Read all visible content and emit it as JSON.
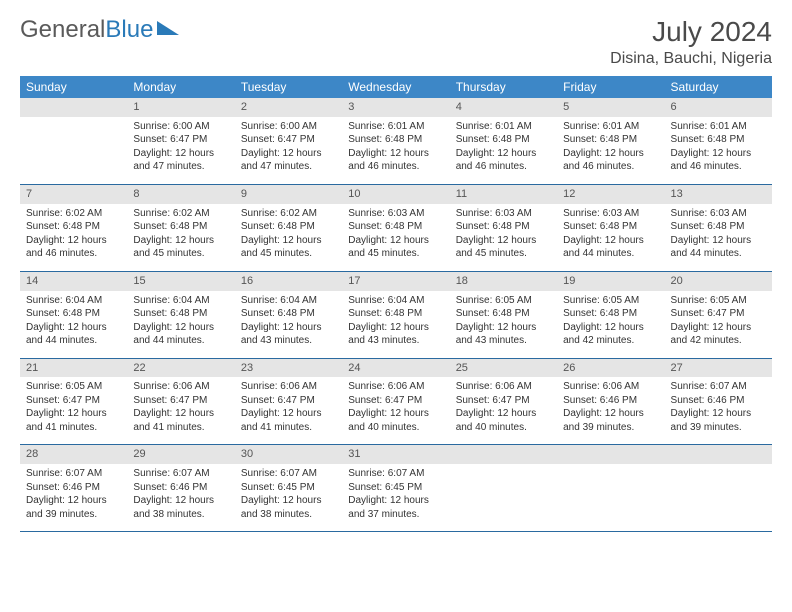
{
  "logo": {
    "part1": "General",
    "part2": "Blue"
  },
  "header": {
    "title": "July 2024",
    "location": "Disina, Bauchi, Nigeria"
  },
  "colors": {
    "header_bg": "#3d87c7",
    "header_text": "#ffffff",
    "daynum_bg": "#e5e5e5",
    "row_border": "#2a6aa0",
    "logo_accent": "#2a7ab8",
    "text": "#333333"
  },
  "columns": [
    "Sunday",
    "Monday",
    "Tuesday",
    "Wednesday",
    "Thursday",
    "Friday",
    "Saturday"
  ],
  "weeks": [
    [
      null,
      {
        "n": "1",
        "sr": "Sunrise: 6:00 AM",
        "ss": "Sunset: 6:47 PM",
        "d1": "Daylight: 12 hours",
        "d2": "and 47 minutes."
      },
      {
        "n": "2",
        "sr": "Sunrise: 6:00 AM",
        "ss": "Sunset: 6:47 PM",
        "d1": "Daylight: 12 hours",
        "d2": "and 47 minutes."
      },
      {
        "n": "3",
        "sr": "Sunrise: 6:01 AM",
        "ss": "Sunset: 6:48 PM",
        "d1": "Daylight: 12 hours",
        "d2": "and 46 minutes."
      },
      {
        "n": "4",
        "sr": "Sunrise: 6:01 AM",
        "ss": "Sunset: 6:48 PM",
        "d1": "Daylight: 12 hours",
        "d2": "and 46 minutes."
      },
      {
        "n": "5",
        "sr": "Sunrise: 6:01 AM",
        "ss": "Sunset: 6:48 PM",
        "d1": "Daylight: 12 hours",
        "d2": "and 46 minutes."
      },
      {
        "n": "6",
        "sr": "Sunrise: 6:01 AM",
        "ss": "Sunset: 6:48 PM",
        "d1": "Daylight: 12 hours",
        "d2": "and 46 minutes."
      }
    ],
    [
      {
        "n": "7",
        "sr": "Sunrise: 6:02 AM",
        "ss": "Sunset: 6:48 PM",
        "d1": "Daylight: 12 hours",
        "d2": "and 46 minutes."
      },
      {
        "n": "8",
        "sr": "Sunrise: 6:02 AM",
        "ss": "Sunset: 6:48 PM",
        "d1": "Daylight: 12 hours",
        "d2": "and 45 minutes."
      },
      {
        "n": "9",
        "sr": "Sunrise: 6:02 AM",
        "ss": "Sunset: 6:48 PM",
        "d1": "Daylight: 12 hours",
        "d2": "and 45 minutes."
      },
      {
        "n": "10",
        "sr": "Sunrise: 6:03 AM",
        "ss": "Sunset: 6:48 PM",
        "d1": "Daylight: 12 hours",
        "d2": "and 45 minutes."
      },
      {
        "n": "11",
        "sr": "Sunrise: 6:03 AM",
        "ss": "Sunset: 6:48 PM",
        "d1": "Daylight: 12 hours",
        "d2": "and 45 minutes."
      },
      {
        "n": "12",
        "sr": "Sunrise: 6:03 AM",
        "ss": "Sunset: 6:48 PM",
        "d1": "Daylight: 12 hours",
        "d2": "and 44 minutes."
      },
      {
        "n": "13",
        "sr": "Sunrise: 6:03 AM",
        "ss": "Sunset: 6:48 PM",
        "d1": "Daylight: 12 hours",
        "d2": "and 44 minutes."
      }
    ],
    [
      {
        "n": "14",
        "sr": "Sunrise: 6:04 AM",
        "ss": "Sunset: 6:48 PM",
        "d1": "Daylight: 12 hours",
        "d2": "and 44 minutes."
      },
      {
        "n": "15",
        "sr": "Sunrise: 6:04 AM",
        "ss": "Sunset: 6:48 PM",
        "d1": "Daylight: 12 hours",
        "d2": "and 44 minutes."
      },
      {
        "n": "16",
        "sr": "Sunrise: 6:04 AM",
        "ss": "Sunset: 6:48 PM",
        "d1": "Daylight: 12 hours",
        "d2": "and 43 minutes."
      },
      {
        "n": "17",
        "sr": "Sunrise: 6:04 AM",
        "ss": "Sunset: 6:48 PM",
        "d1": "Daylight: 12 hours",
        "d2": "and 43 minutes."
      },
      {
        "n": "18",
        "sr": "Sunrise: 6:05 AM",
        "ss": "Sunset: 6:48 PM",
        "d1": "Daylight: 12 hours",
        "d2": "and 43 minutes."
      },
      {
        "n": "19",
        "sr": "Sunrise: 6:05 AM",
        "ss": "Sunset: 6:48 PM",
        "d1": "Daylight: 12 hours",
        "d2": "and 42 minutes."
      },
      {
        "n": "20",
        "sr": "Sunrise: 6:05 AM",
        "ss": "Sunset: 6:47 PM",
        "d1": "Daylight: 12 hours",
        "d2": "and 42 minutes."
      }
    ],
    [
      {
        "n": "21",
        "sr": "Sunrise: 6:05 AM",
        "ss": "Sunset: 6:47 PM",
        "d1": "Daylight: 12 hours",
        "d2": "and 41 minutes."
      },
      {
        "n": "22",
        "sr": "Sunrise: 6:06 AM",
        "ss": "Sunset: 6:47 PM",
        "d1": "Daylight: 12 hours",
        "d2": "and 41 minutes."
      },
      {
        "n": "23",
        "sr": "Sunrise: 6:06 AM",
        "ss": "Sunset: 6:47 PM",
        "d1": "Daylight: 12 hours",
        "d2": "and 41 minutes."
      },
      {
        "n": "24",
        "sr": "Sunrise: 6:06 AM",
        "ss": "Sunset: 6:47 PM",
        "d1": "Daylight: 12 hours",
        "d2": "and 40 minutes."
      },
      {
        "n": "25",
        "sr": "Sunrise: 6:06 AM",
        "ss": "Sunset: 6:47 PM",
        "d1": "Daylight: 12 hours",
        "d2": "and 40 minutes."
      },
      {
        "n": "26",
        "sr": "Sunrise: 6:06 AM",
        "ss": "Sunset: 6:46 PM",
        "d1": "Daylight: 12 hours",
        "d2": "and 39 minutes."
      },
      {
        "n": "27",
        "sr": "Sunrise: 6:07 AM",
        "ss": "Sunset: 6:46 PM",
        "d1": "Daylight: 12 hours",
        "d2": "and 39 minutes."
      }
    ],
    [
      {
        "n": "28",
        "sr": "Sunrise: 6:07 AM",
        "ss": "Sunset: 6:46 PM",
        "d1": "Daylight: 12 hours",
        "d2": "and 39 minutes."
      },
      {
        "n": "29",
        "sr": "Sunrise: 6:07 AM",
        "ss": "Sunset: 6:46 PM",
        "d1": "Daylight: 12 hours",
        "d2": "and 38 minutes."
      },
      {
        "n": "30",
        "sr": "Sunrise: 6:07 AM",
        "ss": "Sunset: 6:45 PM",
        "d1": "Daylight: 12 hours",
        "d2": "and 38 minutes."
      },
      {
        "n": "31",
        "sr": "Sunrise: 6:07 AM",
        "ss": "Sunset: 6:45 PM",
        "d1": "Daylight: 12 hours",
        "d2": "and 37 minutes."
      },
      null,
      null,
      null
    ]
  ]
}
